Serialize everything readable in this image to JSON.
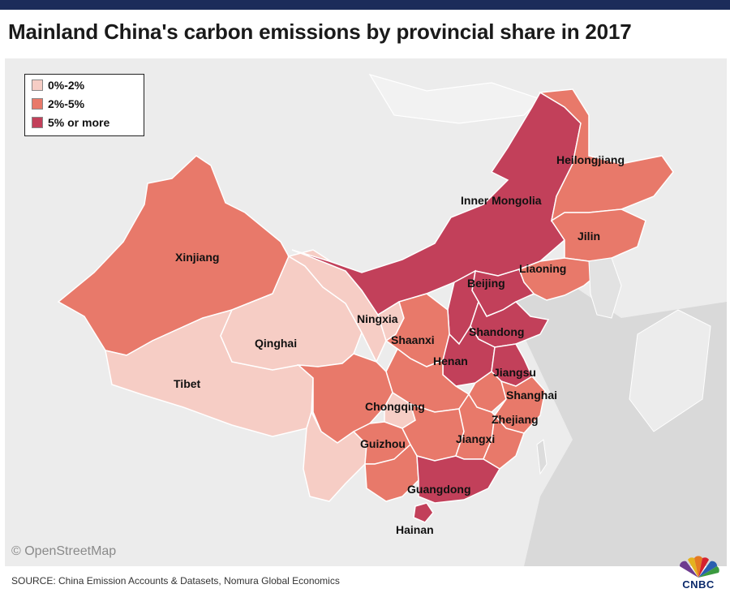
{
  "title": "Mainland China's carbon emissions by provincial share in 2017",
  "legend": [
    {
      "label": "0%-2%",
      "color": "#f6cdc5"
    },
    {
      "label": "2%-5%",
      "color": "#e8796a"
    },
    {
      "label": "5% or more",
      "color": "#c2405a"
    }
  ],
  "provinces": [
    {
      "label": "Heilongjiang"
    },
    {
      "label": "Inner Mongolia"
    },
    {
      "label": "Jilin"
    },
    {
      "label": "Xinjiang"
    },
    {
      "label": "Liaoning"
    },
    {
      "label": "Beijing"
    },
    {
      "label": "Ningxia"
    },
    {
      "label": "Shandong"
    },
    {
      "label": "Shaanxi"
    },
    {
      "label": "Qinghai"
    },
    {
      "label": "Henan"
    },
    {
      "label": "Jiangsu"
    },
    {
      "label": "Tibet"
    },
    {
      "label": "Shanghai"
    },
    {
      "label": "Chongqing"
    },
    {
      "label": "Zhejiang"
    },
    {
      "label": "Guizhou"
    },
    {
      "label": "Jiangxi"
    },
    {
      "label": "Guangdong"
    },
    {
      "label": "Hainan"
    }
  ],
  "attribution": "© OpenStreetMap",
  "source": "SOURCE: China Emission Accounts & Datasets, Nomura Global Economics",
  "logo": "CNBC"
}
